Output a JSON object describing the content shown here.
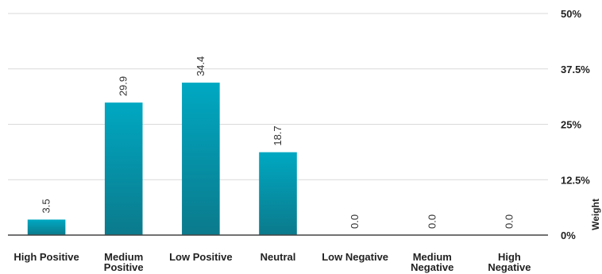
{
  "chart_data": {
    "type": "bar",
    "categories": [
      "High Positive",
      "Medium Positive",
      "Low Positive",
      "Neutral",
      "Low Negative",
      "Medium Negative",
      "High Negative"
    ],
    "category_lines": [
      [
        "High Positive"
      ],
      [
        "Medium",
        "Positive"
      ],
      [
        "Low Positive"
      ],
      [
        "Neutral"
      ],
      [
        "Low Negative"
      ],
      [
        "Medium",
        "Negative"
      ],
      [
        "High",
        "Negative"
      ]
    ],
    "values": [
      3.5,
      29.9,
      34.4,
      18.7,
      0.0,
      0.0,
      0.0
    ],
    "data_labels": [
      "3.5",
      "29.9",
      "34.4",
      "18.7",
      "0.0",
      "0.0",
      "0.0"
    ],
    "yticks": [
      0,
      12.5,
      25,
      37.5,
      50
    ],
    "ytick_labels": [
      "0%",
      "12.5%",
      "25%",
      "37.5%",
      "50%"
    ],
    "ylim": [
      0,
      50
    ],
    "ylabel": "Weight",
    "xlabel": "",
    "title": "",
    "grid": true,
    "legend": "none",
    "colors": {
      "bar_top": "#00a8c2",
      "bar_bottom": "#0b7a8c",
      "grid": "#d9d9d9",
      "axis": "#444444"
    }
  }
}
